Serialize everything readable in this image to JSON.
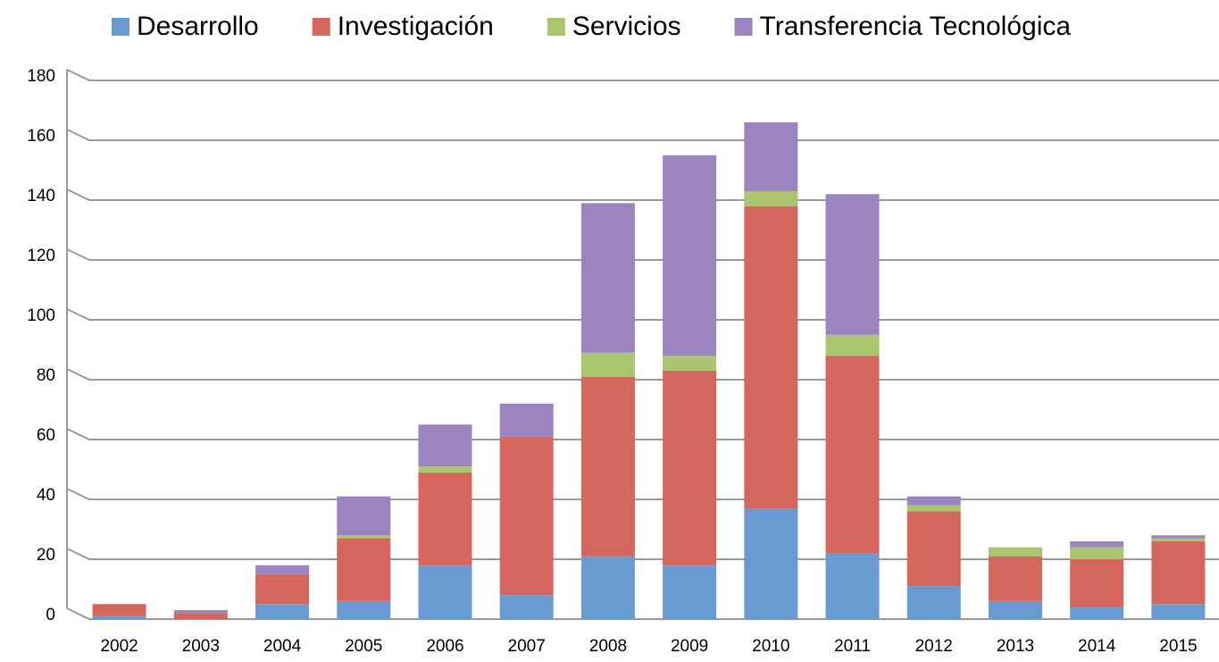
{
  "chart_data": {
    "type": "stacked-bar",
    "categories": [
      "2002",
      "2003",
      "2004",
      "2005",
      "2006",
      "2007",
      "2008",
      "2009",
      "2010",
      "2011",
      "2012",
      "2013",
      "2014",
      "2015"
    ],
    "series": [
      {
        "name": "Desarrollo",
        "color": "#6a9bd0",
        "values": [
          1,
          0,
          5,
          6,
          18,
          8,
          21,
          18,
          37,
          22,
          11,
          6,
          4,
          5
        ]
      },
      {
        "name": "Investigación",
        "color": "#d4665d",
        "values": [
          4,
          2,
          10,
          21,
          31,
          53,
          60,
          65,
          101,
          66,
          25,
          15,
          16,
          21
        ]
      },
      {
        "name": "Servicios",
        "color": "#a9c56d",
        "values": [
          0,
          0,
          0,
          1,
          2,
          0,
          8,
          5,
          5,
          7,
          2,
          3,
          4,
          1
        ]
      },
      {
        "name": "Transferencia Tecnológica",
        "color": "#9b84bf",
        "values": [
          0,
          1,
          3,
          13,
          14,
          11,
          50,
          67,
          23,
          47,
          3,
          0,
          2,
          1
        ]
      }
    ],
    "ylim": [
      0,
      180
    ],
    "yticks": [
      0,
      20,
      40,
      60,
      80,
      100,
      120,
      140,
      160,
      180
    ],
    "grid": true,
    "legend": "top"
  }
}
